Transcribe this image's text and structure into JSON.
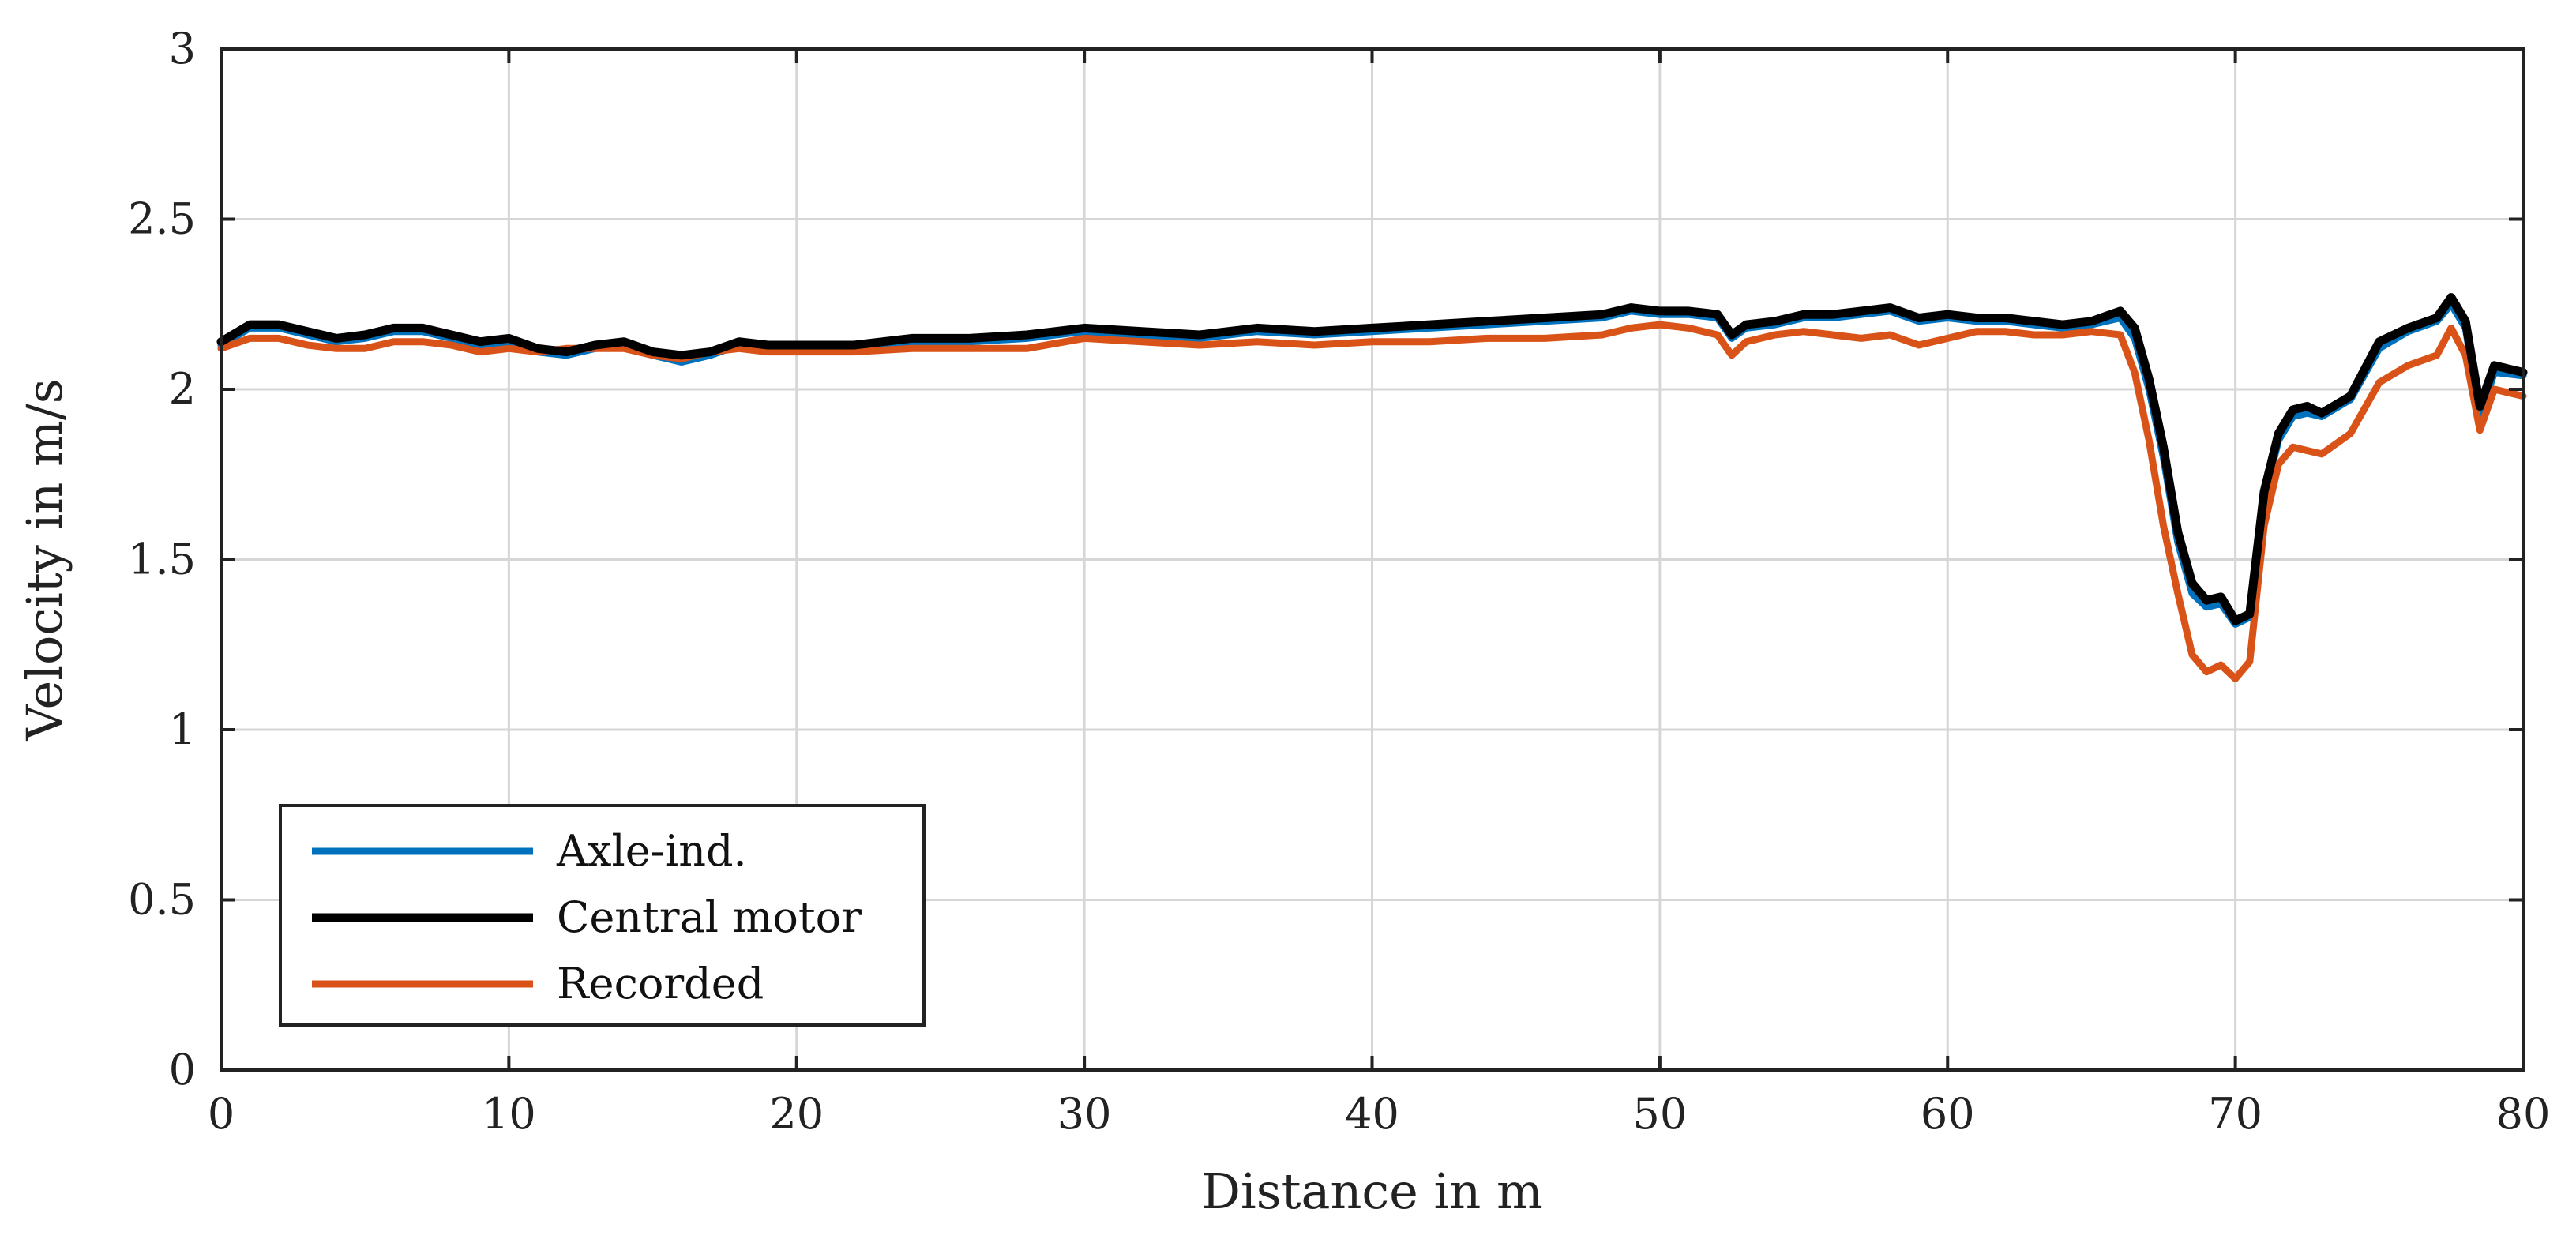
{
  "chart_data": {
    "type": "line",
    "title": "",
    "xlabel": "Distance in m",
    "ylabel": "Velocity in m/s",
    "xlim": [
      0,
      80
    ],
    "ylim": [
      0,
      3
    ],
    "xticks": [
      0,
      10,
      20,
      30,
      40,
      50,
      60,
      70,
      80
    ],
    "yticks": [
      0,
      0.5,
      1,
      1.5,
      2,
      2.5,
      3
    ],
    "xtick_labels": [
      "0",
      "10",
      "20",
      "30",
      "40",
      "50",
      "60",
      "70",
      "80"
    ],
    "ytick_labels": [
      "0",
      "0.5",
      "1",
      "1.5",
      "2",
      "2.5",
      "3"
    ],
    "grid": true,
    "legend_position": "bottom-left",
    "series": [
      {
        "name": "Axle-ind.",
        "color": "#0072BD",
        "x": [
          0,
          1,
          2,
          3,
          4,
          5,
          6,
          7,
          8,
          9,
          10,
          11,
          12,
          13,
          14,
          15,
          16,
          17,
          18,
          19,
          20,
          22,
          24,
          26,
          28,
          30,
          32,
          34,
          36,
          38,
          40,
          42,
          44,
          46,
          48,
          49,
          50,
          51,
          52,
          52.5,
          53,
          54,
          55,
          56,
          57,
          58,
          59,
          60,
          61,
          62,
          63,
          64,
          65,
          66,
          66.5,
          67,
          67.5,
          68,
          68.5,
          69,
          69.5,
          70,
          70.5,
          71,
          71.5,
          72,
          72.5,
          73,
          74,
          75,
          76,
          77,
          77.5,
          78,
          78.5,
          79,
          80
        ],
        "values": [
          2.13,
          2.18,
          2.18,
          2.16,
          2.14,
          2.15,
          2.17,
          2.17,
          2.15,
          2.13,
          2.14,
          2.11,
          2.1,
          2.12,
          2.13,
          2.1,
          2.08,
          2.1,
          2.13,
          2.12,
          2.12,
          2.12,
          2.14,
          2.14,
          2.15,
          2.17,
          2.16,
          2.15,
          2.17,
          2.16,
          2.17,
          2.18,
          2.19,
          2.2,
          2.21,
          2.23,
          2.22,
          2.22,
          2.21,
          2.15,
          2.18,
          2.19,
          2.21,
          2.21,
          2.22,
          2.23,
          2.2,
          2.21,
          2.2,
          2.2,
          2.19,
          2.18,
          2.19,
          2.21,
          2.15,
          2.0,
          1.8,
          1.55,
          1.4,
          1.36,
          1.37,
          1.31,
          1.33,
          1.68,
          1.85,
          1.92,
          1.93,
          1.92,
          1.97,
          2.12,
          2.17,
          2.2,
          2.25,
          2.18,
          1.92,
          2.05,
          2.04
        ]
      },
      {
        "name": "Central motor",
        "color": "#000000",
        "x": [
          0,
          1,
          2,
          3,
          4,
          5,
          6,
          7,
          8,
          9,
          10,
          11,
          12,
          13,
          14,
          15,
          16,
          17,
          18,
          19,
          20,
          22,
          24,
          26,
          28,
          30,
          32,
          34,
          36,
          38,
          40,
          42,
          44,
          46,
          48,
          49,
          50,
          51,
          52,
          52.5,
          53,
          54,
          55,
          56,
          57,
          58,
          59,
          60,
          61,
          62,
          63,
          64,
          65,
          66,
          66.5,
          67,
          67.5,
          68,
          68.5,
          69,
          69.5,
          70,
          70.5,
          71,
          71.5,
          72,
          72.5,
          73,
          74,
          75,
          76,
          77,
          77.5,
          78,
          78.5,
          79,
          80
        ],
        "values": [
          2.14,
          2.19,
          2.19,
          2.17,
          2.15,
          2.16,
          2.18,
          2.18,
          2.16,
          2.14,
          2.15,
          2.12,
          2.11,
          2.13,
          2.14,
          2.11,
          2.1,
          2.11,
          2.14,
          2.13,
          2.13,
          2.13,
          2.15,
          2.15,
          2.16,
          2.18,
          2.17,
          2.16,
          2.18,
          2.17,
          2.18,
          2.19,
          2.2,
          2.21,
          2.22,
          2.24,
          2.23,
          2.23,
          2.22,
          2.16,
          2.19,
          2.2,
          2.22,
          2.22,
          2.23,
          2.24,
          2.21,
          2.22,
          2.21,
          2.21,
          2.2,
          2.19,
          2.2,
          2.23,
          2.18,
          2.03,
          1.83,
          1.58,
          1.43,
          1.38,
          1.39,
          1.32,
          1.34,
          1.7,
          1.87,
          1.94,
          1.95,
          1.93,
          1.98,
          2.14,
          2.18,
          2.21,
          2.27,
          2.2,
          1.95,
          2.07,
          2.05
        ]
      },
      {
        "name": "Recorded",
        "color": "#D95319",
        "x": [
          0,
          1,
          2,
          3,
          4,
          5,
          6,
          7,
          8,
          9,
          10,
          11,
          12,
          13,
          14,
          15,
          16,
          17,
          18,
          19,
          20,
          22,
          24,
          26,
          28,
          30,
          32,
          34,
          36,
          38,
          40,
          42,
          44,
          46,
          48,
          49,
          50,
          51,
          52,
          52.5,
          53,
          54,
          55,
          56,
          57,
          58,
          59,
          60,
          61,
          62,
          63,
          64,
          65,
          66,
          66.5,
          67,
          67.5,
          68,
          68.5,
          69,
          69.5,
          70,
          70.5,
          71,
          71.5,
          72,
          72.5,
          73,
          74,
          75,
          76,
          77,
          77.5,
          78,
          78.5,
          79,
          80
        ],
        "values": [
          2.12,
          2.15,
          2.15,
          2.13,
          2.12,
          2.12,
          2.14,
          2.14,
          2.13,
          2.11,
          2.12,
          2.11,
          2.12,
          2.12,
          2.12,
          2.1,
          2.09,
          2.11,
          2.12,
          2.11,
          2.11,
          2.11,
          2.12,
          2.12,
          2.12,
          2.15,
          2.14,
          2.13,
          2.14,
          2.13,
          2.14,
          2.14,
          2.15,
          2.15,
          2.16,
          2.18,
          2.19,
          2.18,
          2.16,
          2.1,
          2.14,
          2.16,
          2.17,
          2.16,
          2.15,
          2.16,
          2.13,
          2.15,
          2.17,
          2.17,
          2.16,
          2.16,
          2.17,
          2.16,
          2.05,
          1.85,
          1.6,
          1.4,
          1.22,
          1.17,
          1.19,
          1.15,
          1.2,
          1.6,
          1.78,
          1.83,
          1.82,
          1.81,
          1.87,
          2.02,
          2.07,
          2.1,
          2.18,
          2.1,
          1.88,
          2.0,
          1.98
        ]
      }
    ]
  }
}
